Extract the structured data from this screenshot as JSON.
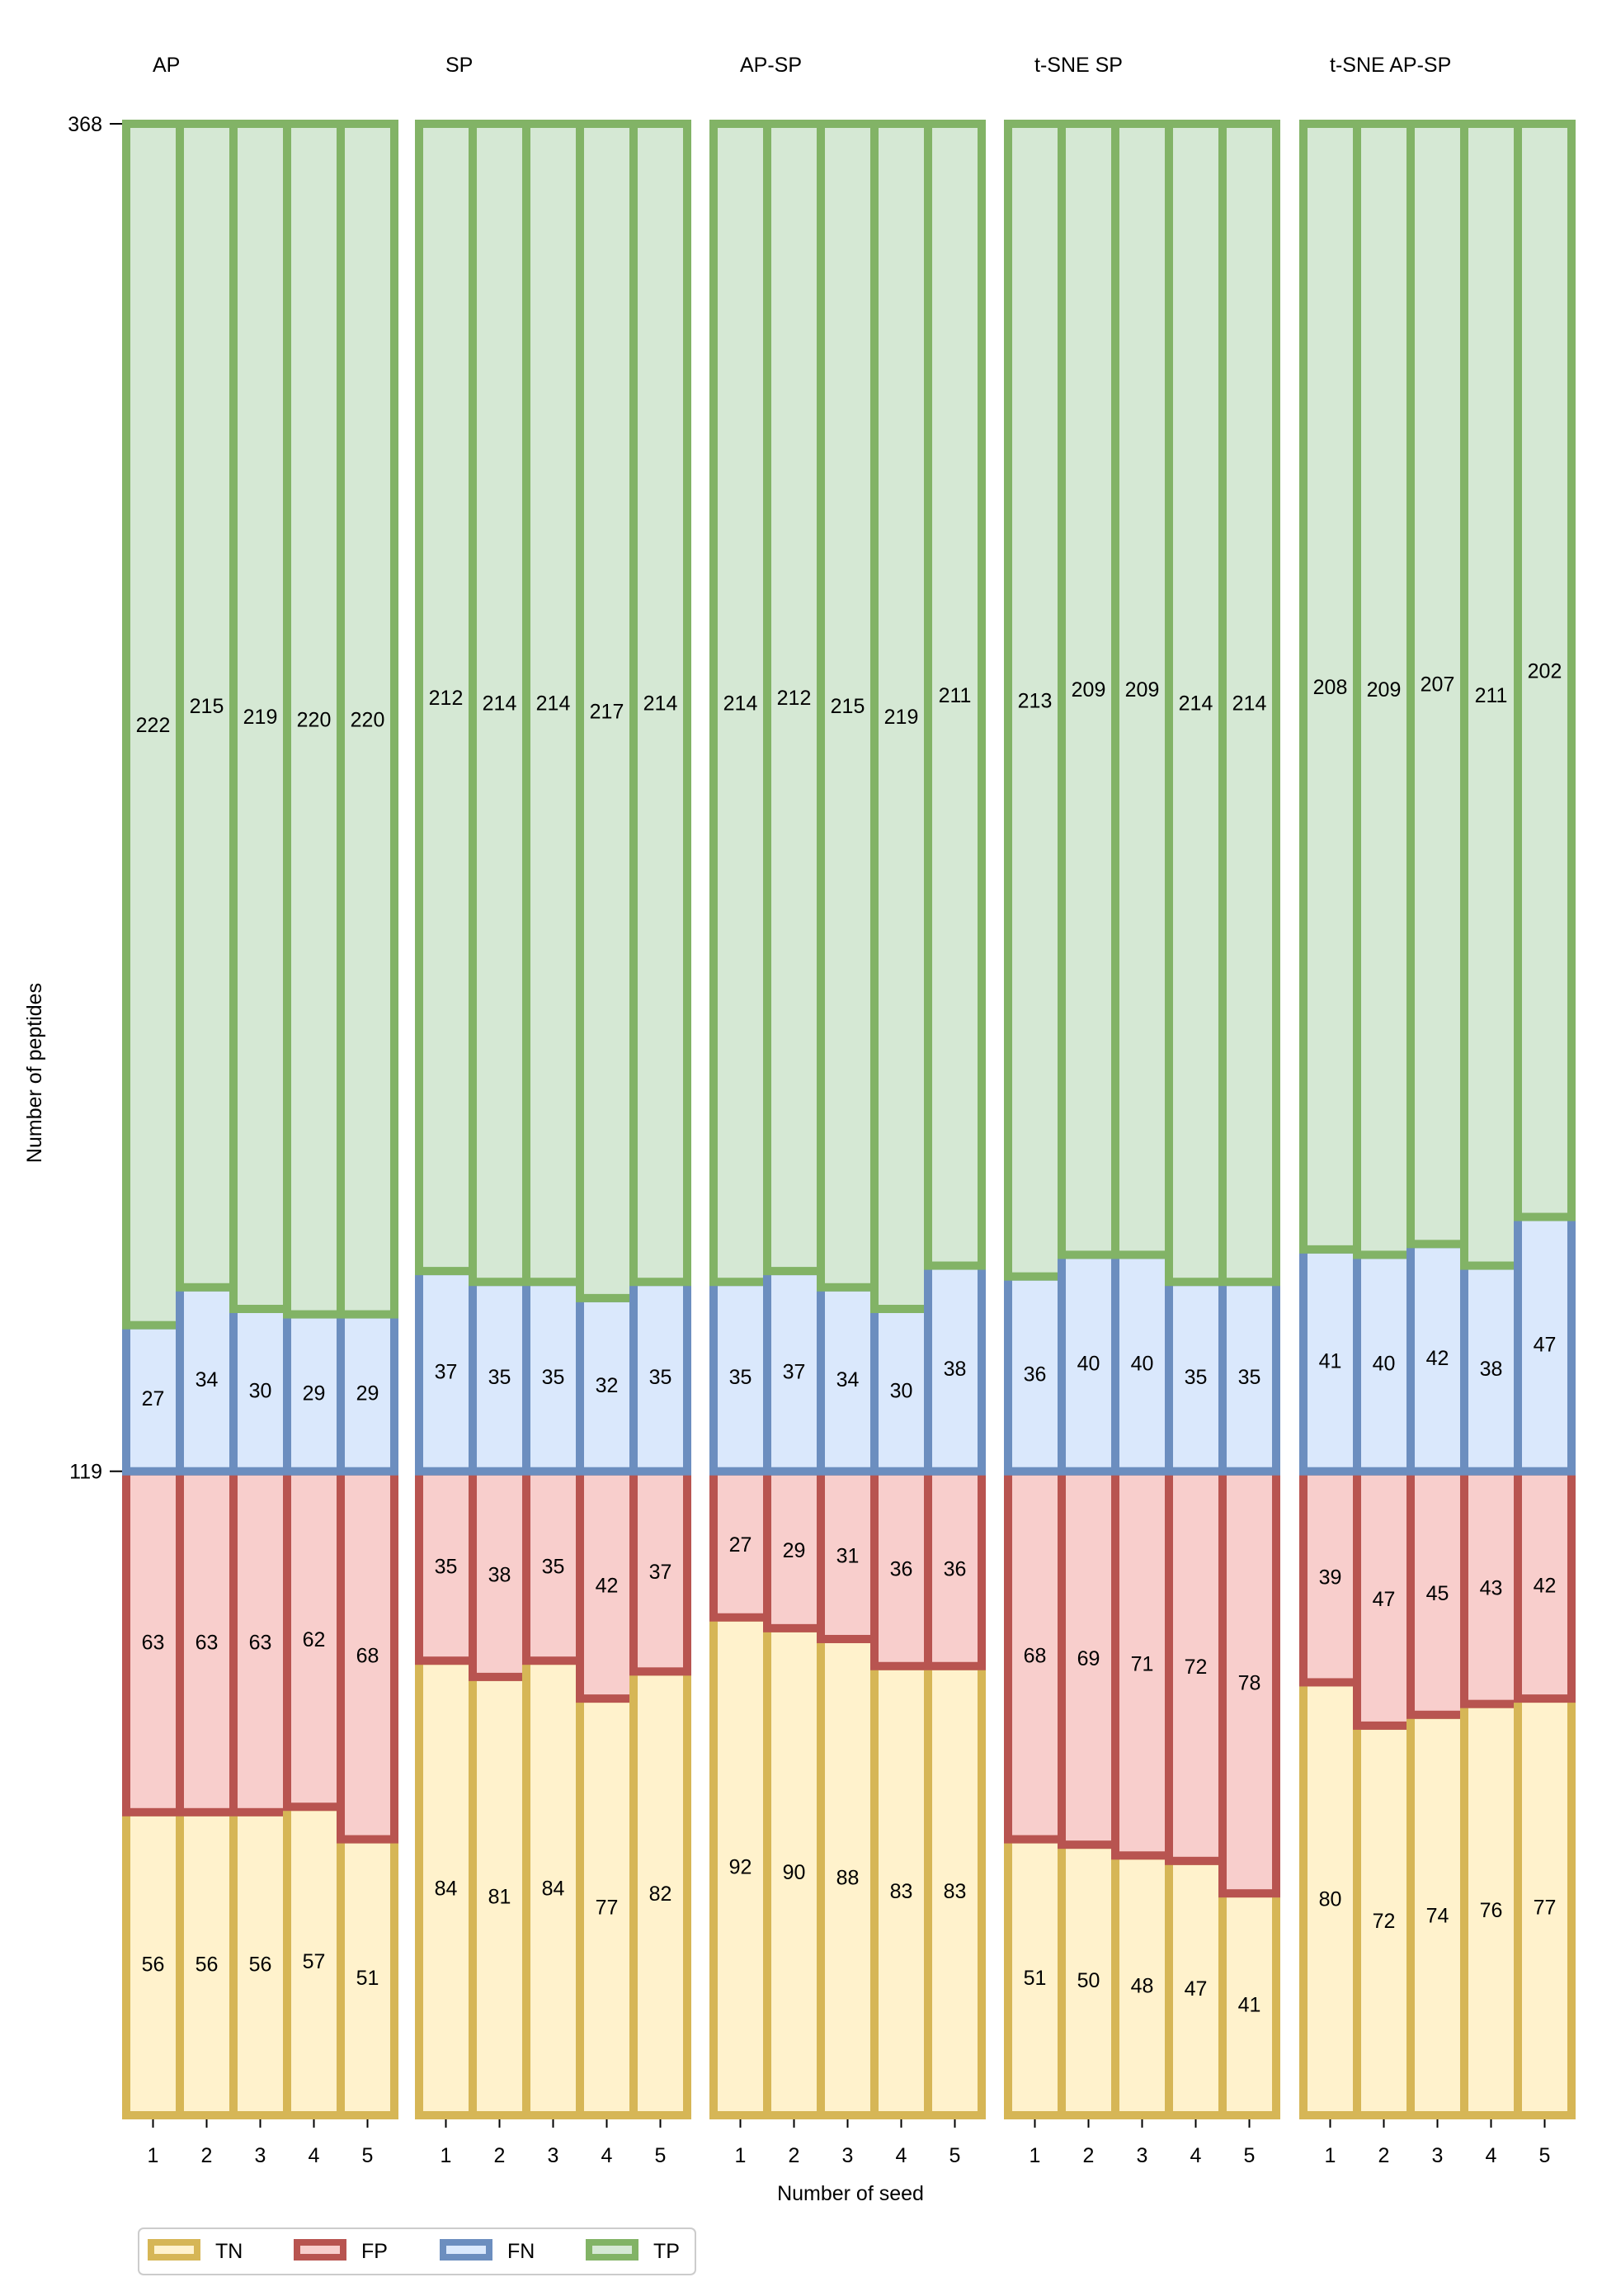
{
  "chart_data": {
    "type": "bar",
    "stacked": true,
    "xlabel": "Number of seed",
    "ylabel": "Number of peptides",
    "ylim": [
      0,
      368
    ],
    "yticks": [
      119,
      368
    ],
    "categories": [
      "1",
      "2",
      "3",
      "4",
      "5"
    ],
    "stack_order": [
      "TN",
      "FP",
      "FN",
      "TP"
    ],
    "colors": {
      "TN": {
        "fill": "#fff2cc",
        "stroke": "#d6b656"
      },
      "FP": {
        "fill": "#f8cecc",
        "stroke": "#b85450"
      },
      "FN": {
        "fill": "#dae8fc",
        "stroke": "#6c8ebf"
      },
      "TP": {
        "fill": "#d5e8d4",
        "stroke": "#82b366"
      }
    },
    "legend": {
      "placement": "bottom-left",
      "entries": [
        "TN",
        "FP",
        "FN",
        "TP"
      ]
    },
    "panels": [
      {
        "title": "AP",
        "TN": [
          56,
          56,
          56,
          57,
          51
        ],
        "FP": [
          63,
          63,
          63,
          62,
          68
        ],
        "FN": [
          27,
          34,
          30,
          29,
          29
        ],
        "TP": [
          222,
          215,
          219,
          220,
          220
        ]
      },
      {
        "title": "SP",
        "TN": [
          84,
          81,
          84,
          77,
          82
        ],
        "FP": [
          35,
          38,
          35,
          42,
          37
        ],
        "FN": [
          37,
          35,
          35,
          32,
          35
        ],
        "TP": [
          212,
          214,
          214,
          217,
          214
        ]
      },
      {
        "title": "AP-SP",
        "TN": [
          92,
          90,
          88,
          83,
          83
        ],
        "FP": [
          27,
          29,
          31,
          36,
          36
        ],
        "FN": [
          35,
          37,
          34,
          30,
          38
        ],
        "TP": [
          214,
          212,
          215,
          219,
          211
        ]
      },
      {
        "title": "t-SNE SP",
        "TN": [
          51,
          50,
          48,
          47,
          41
        ],
        "FP": [
          68,
          69,
          71,
          72,
          78
        ],
        "FN": [
          36,
          40,
          40,
          35,
          35
        ],
        "TP": [
          213,
          209,
          209,
          214,
          214
        ]
      },
      {
        "title": "t-SNE AP-SP",
        "TN": [
          80,
          72,
          74,
          76,
          77
        ],
        "FP": [
          39,
          47,
          45,
          43,
          42
        ],
        "FN": [
          41,
          40,
          42,
          38,
          47
        ],
        "TP": [
          208,
          209,
          207,
          211,
          202
        ]
      }
    ]
  }
}
